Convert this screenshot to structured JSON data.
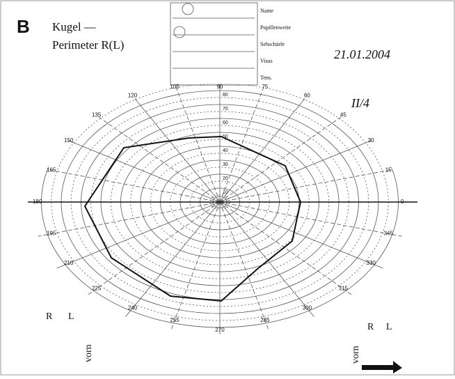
{
  "panel_label": "B",
  "header": {
    "line1": "Kugel —",
    "line2": "Perimeter R(L)",
    "date": "21.01.2004"
  },
  "form": {
    "fields": [
      "Name",
      "Pupillenweite",
      "Sehschärfe",
      "Visus",
      "Tens."
    ]
  },
  "isopter_label": "II/4",
  "angle_labels": [
    "0",
    "15",
    "30",
    "45",
    "60",
    "75",
    "90",
    "105",
    "120",
    "135",
    "150",
    "165",
    "180",
    "195",
    "210",
    "225",
    "240",
    "255",
    "270",
    "285",
    "300",
    "315",
    "330",
    "345"
  ],
  "radius_labels": [
    "10",
    "20",
    "30",
    "40",
    "50",
    "60",
    "70",
    "80"
  ],
  "footer": {
    "left_r": "R",
    "left_l": "L",
    "left_vorn": "vorn",
    "right_r": "R",
    "right_l": "L",
    "right_vorn": "vorn"
  }
}
